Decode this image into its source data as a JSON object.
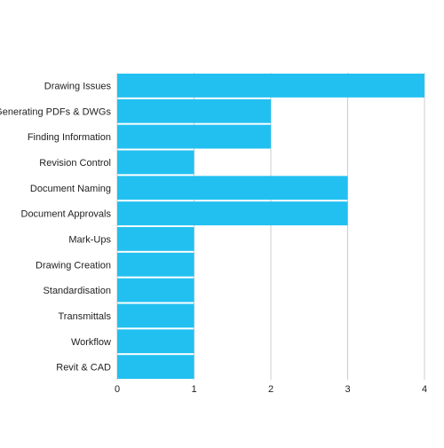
{
  "chart_data": {
    "type": "bar",
    "orientation": "horizontal",
    "title": "",
    "xlabel": "",
    "ylabel": "",
    "categories": [
      "Drawing Issues",
      "Generating PDFs & DWGs",
      "Finding Information",
      "Revision Control",
      "Document Naming",
      "Document Approvals",
      "Mark-Ups",
      "Drawing Creation",
      "Standardisation",
      "Transmittals",
      "Workflow",
      "Revit & CAD"
    ],
    "values": [
      4,
      2,
      2,
      1,
      3,
      3,
      1,
      1,
      1,
      1,
      1,
      1
    ],
    "xlim": [
      0,
      4
    ],
    "x_ticks": [
      "0",
      "1",
      "2",
      "3",
      "4"
    ],
    "grid": "vertical",
    "legend": "none",
    "colors": {
      "bar": "#22c0f0",
      "grid": "#cccccc",
      "axis": "#cccccc",
      "text": "#222222"
    }
  }
}
